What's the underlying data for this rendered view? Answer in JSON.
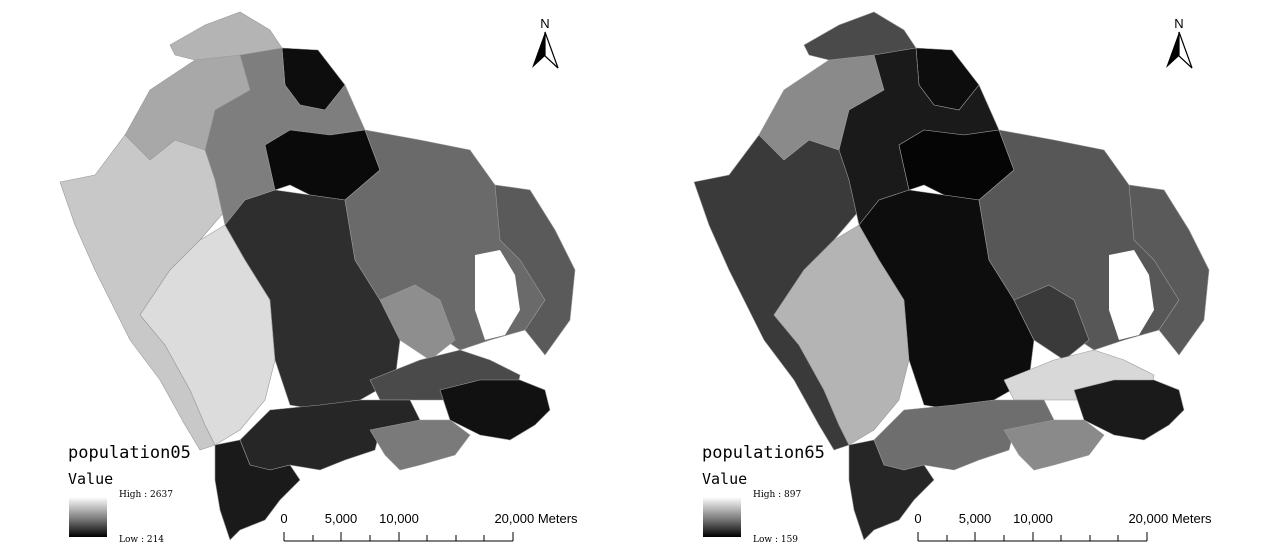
{
  "maps": [
    {
      "id": "population05",
      "title": "population05",
      "subtitle": "Value",
      "legend_high": "High : 2637",
      "legend_low": "Low : 214",
      "value_range": [
        214,
        2637
      ],
      "north_label": "N",
      "scalebar": {
        "labels": [
          "0",
          "5,000",
          "10,000",
          "20,000 Meters"
        ]
      },
      "region_colors": {
        "west_strip": "#c8c8c8",
        "northwest": "#a8a8a8",
        "north_tip": "#b4b4b4",
        "north_dark": "#0d0d0d",
        "center_north": "#7e7e7e",
        "dark_block": "#0a0a0a",
        "southwest_light": "#dcdcdc",
        "center_dark": "#2e2e2e",
        "east": "#6a6a6a",
        "east_edge": "#5a5a5a",
        "center_mid": "#8e8e8e",
        "south_coast": "#262626",
        "southeast_band": "#4a4a4a",
        "southeast_dark": "#111111",
        "south_bottom": "#7a7a7a",
        "southwest_tip": "#1a1a1a"
      }
    },
    {
      "id": "population65",
      "title": "population65",
      "subtitle": "Value",
      "legend_high": "High : 897",
      "legend_low": "Low : 159",
      "value_range": [
        159,
        897
      ],
      "north_label": "N",
      "scalebar": {
        "labels": [
          "0",
          "5,000",
          "10,000",
          "20,000 Meters"
        ]
      },
      "region_colors": {
        "west_strip": "#3a3a3a",
        "northwest": "#8a8a8a",
        "north_tip": "#4a4a4a",
        "north_dark": "#0d0d0d",
        "center_north": "#1a1a1a",
        "dark_block": "#050505",
        "southwest_light": "#b4b4b4",
        "center_dark": "#0d0d0d",
        "east": "#575757",
        "east_edge": "#5a5a5a",
        "center_mid": "#3a3a3a",
        "south_coast": "#6e6e6e",
        "southeast_band": "#d8d8d8",
        "southeast_dark": "#1a1a1a",
        "south_bottom": "#8a8a8a",
        "southwest_tip": "#262626"
      }
    }
  ]
}
